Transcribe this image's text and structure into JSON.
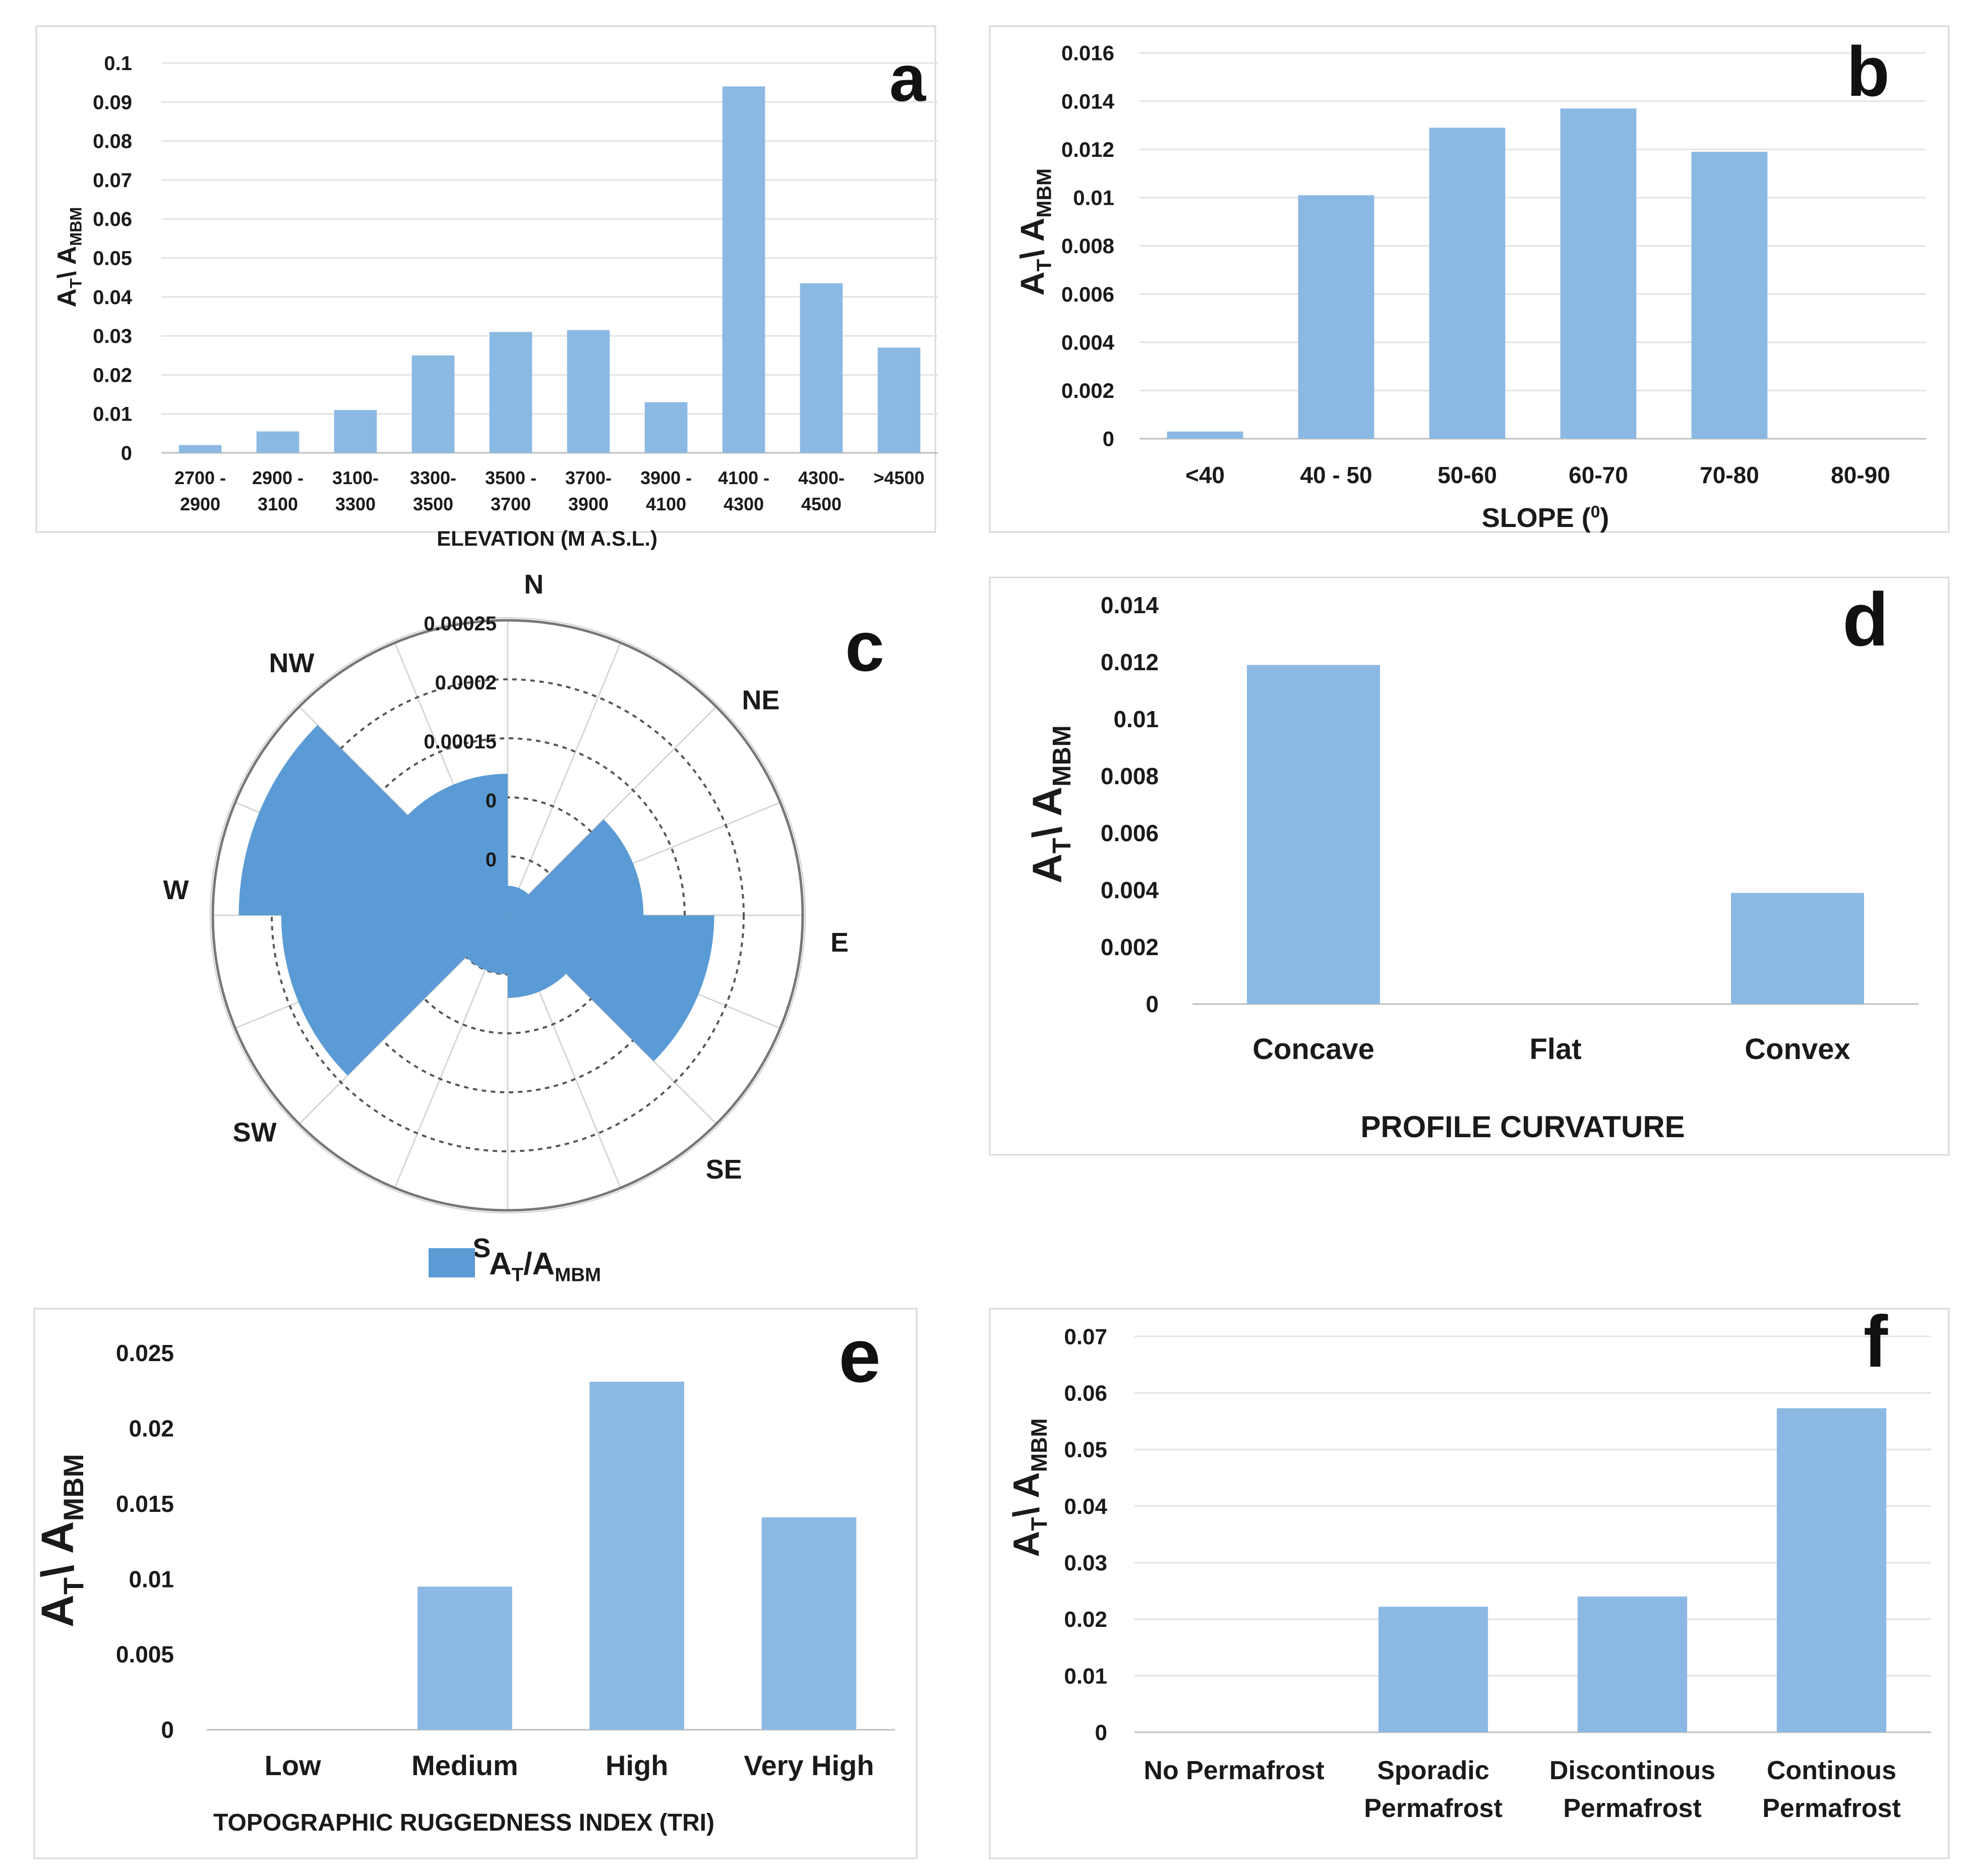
{
  "panels": [
    {
      "id": "a",
      "letter": "a",
      "chart_data": {
        "type": "bar",
        "categories": [
          [
            "2700 -",
            "2900"
          ],
          [
            "2900 -",
            "3100"
          ],
          [
            "3100-",
            "3300"
          ],
          [
            "3300-",
            "3500"
          ],
          [
            "3500 -",
            "3700"
          ],
          [
            "3700-",
            "3900"
          ],
          [
            "3900 -",
            "4100"
          ],
          [
            "4100 -",
            "4300"
          ],
          [
            "4300-",
            "4500"
          ],
          [
            ">4500"
          ]
        ],
        "values": [
          0.002,
          0.0055,
          0.011,
          0.025,
          0.031,
          0.0315,
          0.013,
          0.094,
          0.0435,
          0.027
        ],
        "yticks": [
          "0",
          "0.01",
          "0.02",
          "0.03",
          "0.04",
          "0.05",
          "0.06",
          "0.07",
          "0.08",
          "0.09",
          "0.1"
        ],
        "ylim": [
          0,
          0.1
        ],
        "ylabel": {
          "main": "A",
          "sub1": "T",
          "sep": "\\ A",
          "sub2": "MBM"
        },
        "xlabel": "ELEVATION (M A.S.L.)",
        "grid": true
      }
    },
    {
      "id": "b",
      "letter": "b",
      "chart_data": {
        "type": "bar",
        "categories": [
          [
            "<40"
          ],
          [
            "40 - 50"
          ],
          [
            "50-60"
          ],
          [
            "60-70"
          ],
          [
            "70-80"
          ],
          [
            "80-90"
          ]
        ],
        "values": [
          0.0003,
          0.0101,
          0.0129,
          0.0137,
          0.0119,
          0
        ],
        "yticks": [
          "0",
          "0.002",
          "0.004",
          "0.006",
          "0.008",
          "0.01",
          "0.012",
          "0.014",
          "0.016"
        ],
        "ylim": [
          0,
          0.016
        ],
        "ylabel": {
          "main": "A",
          "sub1": "T",
          "sep": "\\ A",
          "sub2": "MBM"
        },
        "xlabel": "SLOPE (",
        "xlabel_sup": "0",
        "xlabel_end": ")",
        "grid": true
      }
    },
    {
      "id": "c",
      "letter": "c",
      "chart_data": {
        "type": "polar-bar",
        "directions": [
          "N",
          "NE",
          "E",
          "SE",
          "S",
          "SW",
          "W",
          "NW"
        ],
        "values": [
          2.5e-05,
          0.000115,
          0.000175,
          7e-05,
          5e-05,
          0.000192,
          0.000228,
          0.00012
        ],
        "rmax": 0.00025,
        "ring_labels": [
          "0.00025",
          "0.0002",
          "0.00015",
          "0",
          "0"
        ],
        "legend": {
          "main": "A",
          "sub1": "T",
          "sep": "/A",
          "sub2": "MBM"
        },
        "legend_position": "bottom"
      }
    },
    {
      "id": "d",
      "letter": "d",
      "chart_data": {
        "type": "bar",
        "categories": [
          [
            "Concave"
          ],
          [
            "Flat"
          ],
          [
            "Convex"
          ]
        ],
        "values": [
          0.0119,
          0,
          0.0039
        ],
        "yticks": [
          "0",
          "0.002",
          "0.004",
          "0.006",
          "0.008",
          "0.01",
          "0.012",
          "0.014"
        ],
        "ylim": [
          0,
          0.014
        ],
        "ylabel": {
          "main": "A",
          "sub1": "T",
          "sep": "\\ A",
          "sub2": "MBM"
        },
        "xlabel": "PROFILE CURVATURE",
        "grid": false
      }
    },
    {
      "id": "e",
      "letter": "e",
      "chart_data": {
        "type": "bar",
        "categories": [
          [
            "Low"
          ],
          [
            "Medium"
          ],
          [
            "High"
          ],
          [
            "Very High"
          ]
        ],
        "values": [
          0,
          0.0095,
          0.0231,
          0.0141
        ],
        "yticks": [
          "0",
          "0.005",
          "0.01",
          "0.015",
          "0.02",
          "0.025"
        ],
        "ylim": [
          0,
          0.025
        ],
        "ylabel": {
          "main": "A",
          "sub1": "T",
          "sep": "\\ A",
          "sub2": "MBM"
        },
        "xlabel": "TOPOGRAPHIC RUGGEDNESS INDEX (TRI)",
        "grid": false
      }
    },
    {
      "id": "f",
      "letter": "f",
      "chart_data": {
        "type": "bar",
        "categories": [
          [
            "No Permafrost"
          ],
          [
            "Sporadic",
            "Permafrost"
          ],
          [
            "Discontinous",
            "Permafrost"
          ],
          [
            "Continous",
            "Permafrost"
          ]
        ],
        "values": [
          0,
          0.0222,
          0.024,
          0.0573
        ],
        "yticks": [
          "0",
          "0.01",
          "0.02",
          "0.03",
          "0.04",
          "0.05",
          "0.06",
          "0.07"
        ],
        "ylim": [
          0,
          0.07
        ],
        "ylabel": {
          "main": "A",
          "sub1": "T",
          "sep": "\\ A",
          "sub2": "MBM"
        },
        "xlabel": "",
        "grid": true
      }
    }
  ]
}
